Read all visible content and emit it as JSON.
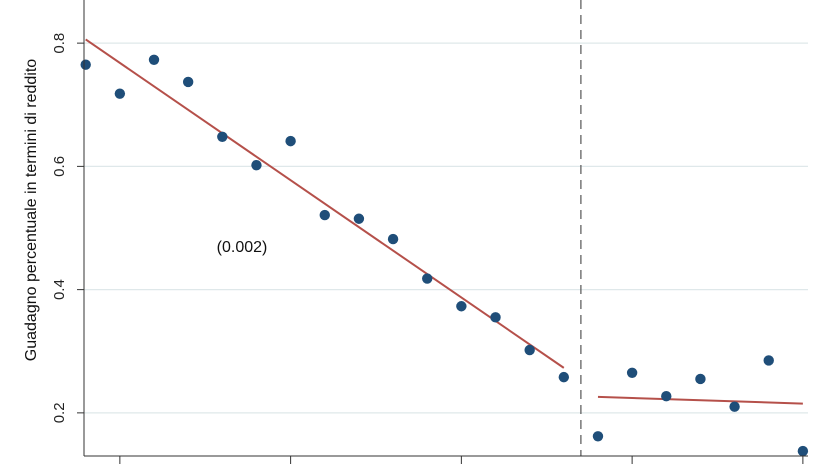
{
  "chart_data": {
    "type": "scatter",
    "ylabel": "Guadagno percentuale in termini di reddito",
    "xlabel": "",
    "ylim": [
      0.13,
      0.87
    ],
    "y_ticks": [
      0.2,
      0.4,
      0.6,
      0.8
    ],
    "grid": true,
    "annotation": "(0.002)",
    "threshold_x": 15.5,
    "x_ticks": [
      2,
      7,
      12,
      17,
      22
    ],
    "x_tick_labels": [
      "",
      "",
      "",
      "",
      ""
    ],
    "points": {
      "x": [
        1,
        2,
        3,
        4,
        5,
        6,
        7,
        8,
        9,
        10,
        11,
        12,
        13,
        14,
        15,
        16,
        17,
        18,
        19,
        20,
        21,
        22
      ],
      "y": [
        0.765,
        0.718,
        0.773,
        0.737,
        0.648,
        0.602,
        0.641,
        0.521,
        0.515,
        0.482,
        0.418,
        0.373,
        0.355,
        0.302,
        0.258,
        0.162,
        0.265,
        0.227,
        0.255,
        0.21,
        0.285,
        0.138
      ]
    },
    "fit_lines": [
      {
        "x": [
          1,
          15
        ],
        "y": [
          0.806,
          0.273
        ]
      },
      {
        "x": [
          16,
          22
        ],
        "y": [
          0.226,
          0.215
        ]
      }
    ],
    "colors": {
      "points": "#1f4e79",
      "fit": "#b5504a",
      "grid": "#dfe8ea",
      "threshold": "#555555",
      "axis": "#333333"
    }
  }
}
